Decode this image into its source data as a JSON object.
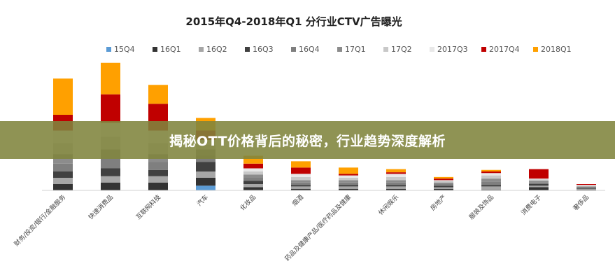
{
  "banner": {
    "text": "揭秘OTT价格背后的秘密，行业趋势深度解析"
  },
  "chart_data": {
    "type": "bar",
    "stacked": true,
    "title": "2015年Q4-2018年Q1 分行业CTV广告曝光",
    "legend_position": "top",
    "grid": false,
    "categories": [
      "财务/投资/银行/金融服务",
      "快速消费品",
      "互联网科技",
      "汽车",
      "化妆品",
      "烟酒",
      "药品及健康产品/医疗药品及健康",
      "休闲娱乐",
      "房地产",
      "服装及饰品",
      "消费电子",
      "奢侈品"
    ],
    "series": [
      {
        "name": "15Q4",
        "color": "#5b9bd5",
        "values": [
          0,
          0,
          0,
          3,
          0,
          0,
          0,
          0,
          0,
          0,
          0,
          0
        ]
      },
      {
        "name": "16Q1",
        "color": "#333333",
        "values": [
          4,
          5,
          5,
          5,
          2,
          1,
          1,
          1,
          1,
          0.5,
          2,
          0.5
        ]
      },
      {
        "name": "16Q2",
        "color": "#a6a6a6",
        "values": [
          4,
          4,
          4,
          4,
          2,
          1.5,
          1.5,
          1.5,
          1,
          2,
          1,
          0.5
        ]
      },
      {
        "name": "16Q3",
        "color": "#404040",
        "values": [
          4,
          5,
          4,
          6,
          2,
          1,
          1,
          1,
          1,
          1,
          1,
          0.5
        ]
      },
      {
        "name": "16Q4",
        "color": "#7f7f7f",
        "values": [
          5,
          6,
          5,
          4,
          2,
          1.5,
          1.5,
          1.5,
          1,
          2,
          1,
          0.5
        ]
      },
      {
        "name": "17Q1",
        "color": "#8c8c8c",
        "values": [
          6,
          6,
          5,
          4,
          2,
          1.5,
          1.5,
          1.5,
          1,
          2,
          1,
          0.5
        ]
      },
      {
        "name": "17Q2",
        "color": "#c8c8c8",
        "values": [
          7,
          8,
          7,
          3,
          2,
          2,
          1.5,
          2,
          1,
          2,
          1,
          0.5
        ]
      },
      {
        "name": "2017Q3",
        "color": "#e8e8e8",
        "values": [
          8,
          9,
          8,
          3,
          2,
          2,
          1.5,
          2,
          0.5,
          1.5,
          0.5,
          0.5
        ]
      },
      {
        "name": "2017Q4",
        "color": "#c00000",
        "values": [
          10,
          18,
          17,
          6,
          3,
          4,
          1,
          1,
          1,
          1,
          6,
          0.5
        ]
      },
      {
        "name": "2018Q1",
        "color": "#ffa000",
        "values": [
          23,
          20,
          12,
          8,
          5,
          4,
          4,
          2,
          1,
          1,
          0,
          0
        ]
      }
    ]
  }
}
